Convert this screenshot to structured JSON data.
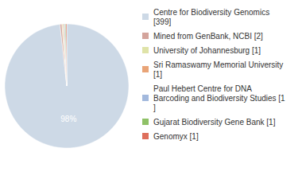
{
  "chart_data": {
    "type": "pie",
    "categories": [
      "Centre for Biodiversity Genomics [399]",
      "Mined from GenBank, NCBI [2]",
      "University of Johannesburg [1]",
      "Sri Ramaswamy Memorial University [1]",
      "Paul Hebert Centre for DNA Barcoding and Biodiversity Studies [1]",
      "Gujarat Biodiversity Gene Bank [1]",
      "Genomyx [1]"
    ],
    "values": [
      98.28,
      0.49,
      0.25,
      0.25,
      0.25,
      0.25,
      0.25
    ],
    "value_labels": [
      "98%",
      null,
      null,
      null,
      null,
      null,
      null
    ],
    "colors": [
      "#cdd9e6",
      "#d4a49c",
      "#dfe3a8",
      "#e9a477",
      "#a3b9dd",
      "#8fc167",
      "#de6f5c"
    ],
    "data_labels": true,
    "legend": "right"
  }
}
